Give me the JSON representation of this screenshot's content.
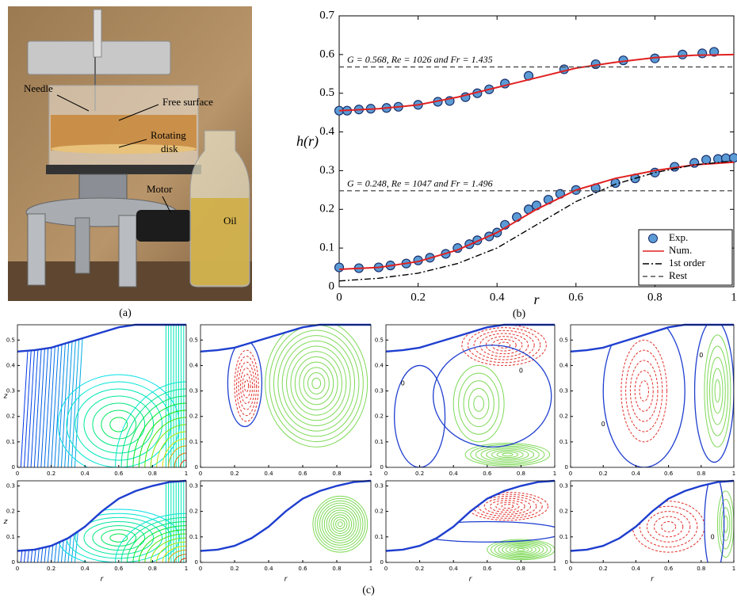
{
  "photo": {
    "labels": [
      "Needle",
      "Free surface",
      "Rotating",
      "disk",
      "Motor",
      "Oil"
    ],
    "caption": "(a)"
  },
  "panel_c": {
    "caption": "(c)"
  },
  "chart_data": [
    {
      "type": "line",
      "caption": "(b)",
      "xlabel": "r",
      "ylabel": "h(r)",
      "xlim": [
        0,
        1
      ],
      "ylim": [
        0,
        0.7
      ],
      "xticks": [
        0,
        0.2,
        0.4,
        0.6,
        0.8,
        1
      ],
      "yticks": [
        0,
        0.1,
        0.2,
        0.3,
        0.4,
        0.5,
        0.6,
        0.7
      ],
      "grid": false,
      "legend": "lower right",
      "annotations": [
        "G = 0.568, Re = 1026 and Fr = 1.435",
        "G = 0.248, Re = 1047 and Fr = 1.496"
      ],
      "series": [
        {
          "name": "Exp.",
          "style": "marker",
          "color": "#5b9bd5",
          "x": [
            0,
            0.02,
            0.05,
            0.08,
            0.12,
            0.15,
            0.2,
            0.25,
            0.28,
            0.32,
            0.35,
            0.38,
            0.42,
            0.48,
            0.57,
            0.65,
            0.72,
            0.8,
            0.87,
            0.92,
            0.95,
            0,
            0.05,
            0.1,
            0.13,
            0.17,
            0.2,
            0.23,
            0.27,
            0.3,
            0.33,
            0.35,
            0.38,
            0.4,
            0.42,
            0.45,
            0.48,
            0.5,
            0.53,
            0.56,
            0.6,
            0.65,
            0.7,
            0.75,
            0.8,
            0.85,
            0.9,
            0.93,
            0.96,
            0.98,
            1
          ],
          "values": [
            0.455,
            0.455,
            0.458,
            0.46,
            0.462,
            0.465,
            0.47,
            0.478,
            0.48,
            0.49,
            0.5,
            0.51,
            0.525,
            0.545,
            0.562,
            0.575,
            0.585,
            0.59,
            0.6,
            0.603,
            0.607,
            0.05,
            0.048,
            0.05,
            0.055,
            0.06,
            0.068,
            0.075,
            0.085,
            0.1,
            0.11,
            0.12,
            0.13,
            0.14,
            0.16,
            0.18,
            0.2,
            0.21,
            0.225,
            0.24,
            0.25,
            0.255,
            0.268,
            0.28,
            0.295,
            0.31,
            0.32,
            0.328,
            0.33,
            0.332,
            0.333
          ]
        },
        {
          "name": "Num.",
          "style": "solid",
          "color": "#e02020",
          "x": [
            0,
            0.1,
            0.2,
            0.3,
            0.4,
            0.5,
            0.6,
            0.7,
            0.8,
            0.9,
            1,
            null,
            0,
            0.1,
            0.2,
            0.3,
            0.4,
            0.5,
            0.6,
            0.7,
            0.8,
            0.9,
            1
          ],
          "values": [
            0.455,
            0.46,
            0.47,
            0.49,
            0.515,
            0.54,
            0.565,
            0.58,
            0.592,
            0.598,
            0.6,
            null,
            0.045,
            0.05,
            0.065,
            0.095,
            0.14,
            0.2,
            0.25,
            0.28,
            0.3,
            0.315,
            0.322
          ]
        },
        {
          "name": "1st order",
          "style": "dashdot",
          "color": "#000000",
          "x": [
            0,
            0.1,
            0.2,
            0.3,
            0.4,
            0.5,
            0.6,
            0.7,
            0.8,
            0.9,
            1
          ],
          "values": [
            0.015,
            0.022,
            0.035,
            0.06,
            0.1,
            0.16,
            0.22,
            0.265,
            0.295,
            0.315,
            0.325
          ]
        },
        {
          "name": "Rest",
          "style": "dashed",
          "color": "#555555",
          "x": [
            0,
            1,
            null,
            0,
            1
          ],
          "values": [
            0.568,
            0.568,
            null,
            0.248,
            0.248
          ]
        }
      ]
    },
    {
      "type": "contour",
      "colormap": "jet",
      "ylabel": "z",
      "xlim": [
        0,
        1
      ],
      "ylim": [
        0,
        0.56
      ],
      "xticks": [
        0,
        0.2,
        0.4,
        0.6,
        0.8,
        1
      ],
      "yticks": [
        0,
        0.1,
        0.2,
        0.3,
        0.4,
        0.5
      ],
      "surface": {
        "color": "#1f3fcf",
        "x": [
          0,
          0.1,
          0.2,
          0.3,
          0.4,
          0.5,
          0.6,
          0.7,
          0.8,
          0.9,
          1
        ],
        "values": [
          0.455,
          0.46,
          0.47,
          0.49,
          0.51,
          0.53,
          0.55,
          0.56,
          0.56,
          0.56,
          0.56
        ]
      }
    },
    {
      "type": "contour",
      "colormap": "signed",
      "colors": {
        "positive": "#7ed957",
        "negative": "#e0302a",
        "zero": "#1f3fcf"
      },
      "xlim": [
        0,
        1
      ],
      "ylim": [
        0,
        0.56
      ],
      "xticks": [
        0,
        0.2,
        0.4,
        0.6,
        0.8,
        1
      ],
      "yticks": [
        0,
        0.1,
        0.2,
        0.3,
        0.4,
        0.5
      ],
      "surface": {
        "color": "#1f3fcf",
        "x": [
          0,
          0.1,
          0.2,
          0.3,
          0.4,
          0.5,
          0.6,
          0.7,
          0.8,
          0.9,
          1
        ],
        "values": [
          0.455,
          0.46,
          0.47,
          0.49,
          0.51,
          0.53,
          0.55,
          0.56,
          0.56,
          0.56,
          0.56
        ]
      }
    },
    {
      "type": "contour",
      "colormap": "signed",
      "colors": {
        "positive": "#7ed957",
        "negative": "#e0302a",
        "zero": "#1f3fcf"
      },
      "zero_labels": [
        "0",
        "0"
      ],
      "xlim": [
        0,
        1
      ],
      "ylim": [
        0,
        0.56
      ],
      "xticks": [
        0,
        0.2,
        0.4,
        0.6,
        0.8,
        1
      ],
      "yticks": [
        0,
        0.1,
        0.2,
        0.3,
        0.4,
        0.5
      ],
      "surface": {
        "color": "#1f3fcf",
        "x": [
          0,
          0.1,
          0.2,
          0.3,
          0.4,
          0.5,
          0.6,
          0.7,
          0.8,
          0.9,
          1
        ],
        "values": [
          0.455,
          0.46,
          0.47,
          0.49,
          0.51,
          0.53,
          0.55,
          0.56,
          0.56,
          0.56,
          0.56
        ]
      }
    },
    {
      "type": "contour",
      "colormap": "signed",
      "colors": {
        "positive": "#7ed957",
        "negative": "#e0302a",
        "zero": "#1f3fcf"
      },
      "zero_labels": [
        "0",
        "0"
      ],
      "xlim": [
        0,
        1
      ],
      "ylim": [
        0,
        0.56
      ],
      "xticks": [
        0,
        0.2,
        0.4,
        0.6,
        0.8,
        1
      ],
      "yticks": [
        0,
        0.1,
        0.2,
        0.3,
        0.4,
        0.5
      ],
      "surface": {
        "color": "#1f3fcf",
        "x": [
          0,
          0.1,
          0.2,
          0.3,
          0.4,
          0.5,
          0.6,
          0.7,
          0.8,
          0.9,
          1
        ],
        "values": [
          0.455,
          0.46,
          0.47,
          0.49,
          0.51,
          0.53,
          0.55,
          0.56,
          0.56,
          0.56,
          0.56
        ]
      }
    },
    {
      "type": "contour",
      "colormap": "jet",
      "ylabel": "z",
      "xlabel": "r",
      "xlim": [
        0,
        1
      ],
      "ylim": [
        0,
        0.32
      ],
      "xticks": [
        0,
        0.2,
        0.4,
        0.6,
        0.8,
        1
      ],
      "yticks": [
        0,
        0.1,
        0.2,
        0.3
      ],
      "surface": {
        "color": "#1f3fcf",
        "x": [
          0,
          0.1,
          0.2,
          0.3,
          0.4,
          0.5,
          0.6,
          0.7,
          0.8,
          0.9,
          1
        ],
        "values": [
          0.045,
          0.05,
          0.065,
          0.095,
          0.14,
          0.2,
          0.25,
          0.28,
          0.3,
          0.315,
          0.32
        ]
      }
    },
    {
      "type": "contour",
      "colormap": "signed",
      "colors": {
        "positive": "#7ed957",
        "negative": "#e0302a",
        "zero": "#1f3fcf"
      },
      "xlabel": "r",
      "xlim": [
        0,
        1
      ],
      "ylim": [
        0,
        0.32
      ],
      "xticks": [
        0,
        0.2,
        0.4,
        0.6,
        0.8,
        1
      ],
      "yticks": [
        0,
        0.1,
        0.2,
        0.3
      ],
      "surface": {
        "color": "#1f3fcf",
        "x": [
          0,
          0.1,
          0.2,
          0.3,
          0.4,
          0.5,
          0.6,
          0.7,
          0.8,
          0.9,
          1
        ],
        "values": [
          0.045,
          0.05,
          0.065,
          0.095,
          0.14,
          0.2,
          0.25,
          0.28,
          0.3,
          0.315,
          0.32
        ]
      }
    },
    {
      "type": "contour",
      "colormap": "signed",
      "colors": {
        "positive": "#7ed957",
        "negative": "#e0302a",
        "zero": "#1f3fcf"
      },
      "xlabel": "r",
      "xlim": [
        0,
        1
      ],
      "ylim": [
        0,
        0.32
      ],
      "xticks": [
        0,
        0.2,
        0.4,
        0.6,
        0.8,
        1
      ],
      "yticks": [
        0,
        0.1,
        0.2,
        0.3
      ],
      "surface": {
        "color": "#1f3fcf",
        "x": [
          0,
          0.1,
          0.2,
          0.3,
          0.4,
          0.5,
          0.6,
          0.7,
          0.8,
          0.9,
          1
        ],
        "values": [
          0.045,
          0.05,
          0.065,
          0.095,
          0.14,
          0.2,
          0.25,
          0.28,
          0.3,
          0.315,
          0.32
        ]
      }
    },
    {
      "type": "contour",
      "colormap": "signed",
      "colors": {
        "positive": "#7ed957",
        "negative": "#e0302a",
        "zero": "#1f3fcf"
      },
      "zero_labels": [
        "0"
      ],
      "xlabel": "r",
      "xlim": [
        0,
        1
      ],
      "ylim": [
        0,
        0.32
      ],
      "xticks": [
        0,
        0.2,
        0.4,
        0.6,
        0.8,
        1
      ],
      "yticks": [
        0,
        0.1,
        0.2,
        0.3
      ],
      "surface": {
        "color": "#1f3fcf",
        "x": [
          0,
          0.1,
          0.2,
          0.3,
          0.4,
          0.5,
          0.6,
          0.7,
          0.8,
          0.9,
          1
        ],
        "values": [
          0.045,
          0.05,
          0.065,
          0.095,
          0.14,
          0.2,
          0.25,
          0.28,
          0.3,
          0.315,
          0.32
        ]
      }
    }
  ]
}
